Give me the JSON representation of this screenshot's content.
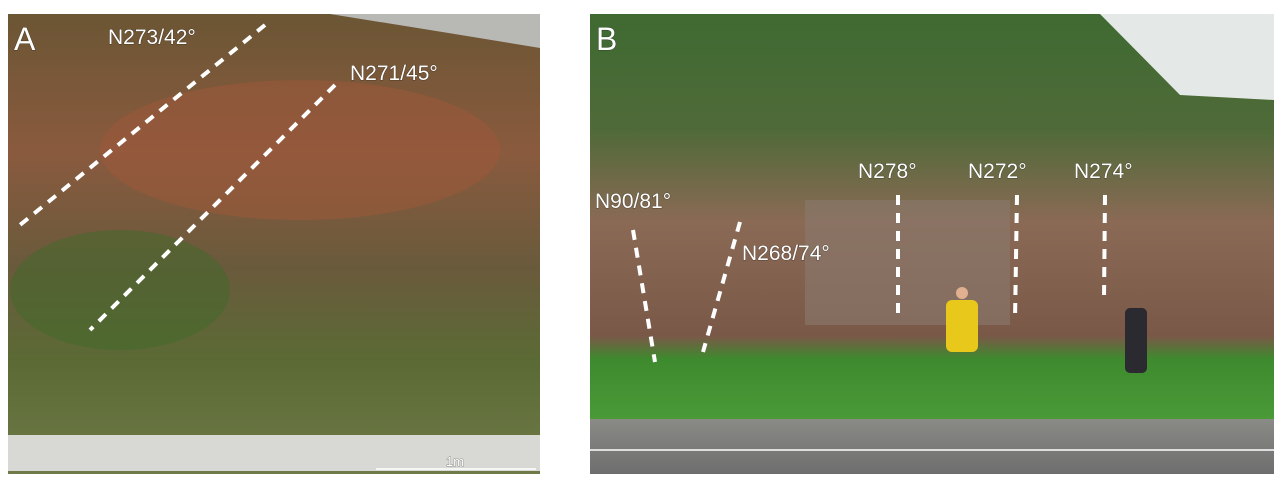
{
  "panels": [
    {
      "label": "A",
      "annotations": [
        "N273/42°",
        "N271/45°"
      ],
      "scale": "1m"
    },
    {
      "label": "B",
      "annotations": [
        "N90/81°",
        "N268/74°",
        "N278°",
        "N272°",
        "N274°"
      ]
    }
  ]
}
